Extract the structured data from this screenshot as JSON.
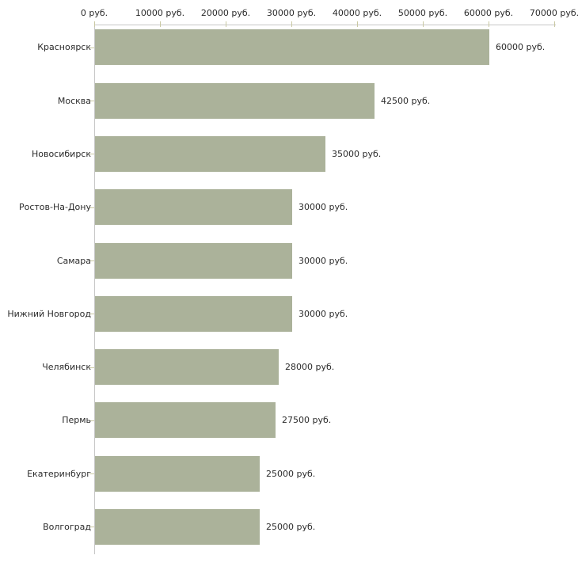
{
  "chart": {
    "background_color": "#ffffff",
    "bar_color": "#abb29a",
    "axis_line_color": "#c7c7c7",
    "tick_mark_color": "#c9c8a2",
    "text_color": "#2b2b2b"
  },
  "chart_data": {
    "type": "bar",
    "orientation": "horizontal",
    "title": "",
    "xlabel": "",
    "ylabel": "",
    "grid": "off",
    "legend": "none",
    "unit": "руб.",
    "categories": [
      "Красноярск",
      "Москва",
      "Новосибирск",
      "Ростов-На-Дону",
      "Самара",
      "Нижний Новгород",
      "Челябинск",
      "Пермь",
      "Екатеринбург",
      "Волгоград"
    ],
    "values": [
      60000,
      42500,
      35000,
      30000,
      30000,
      30000,
      28000,
      27500,
      25000,
      25000
    ],
    "value_labels": [
      "60000 руб.",
      "42500 руб.",
      "35000 руб.",
      "30000 руб.",
      "30000 руб.",
      "30000 руб.",
      "28000 руб.",
      "27500 руб.",
      "25000 руб.",
      "25000 руб."
    ],
    "x_axis": {
      "position": "top",
      "min": 0,
      "max": 70000,
      "tick_values": [
        0,
        10000,
        20000,
        30000,
        40000,
        50000,
        60000,
        70000
      ],
      "tick_labels": [
        "0 руб.",
        "10000 руб.",
        "20000 руб.",
        "30000 руб.",
        "40000 руб.",
        "50000 руб.",
        "60000 руб.",
        "70000 руб."
      ]
    }
  }
}
